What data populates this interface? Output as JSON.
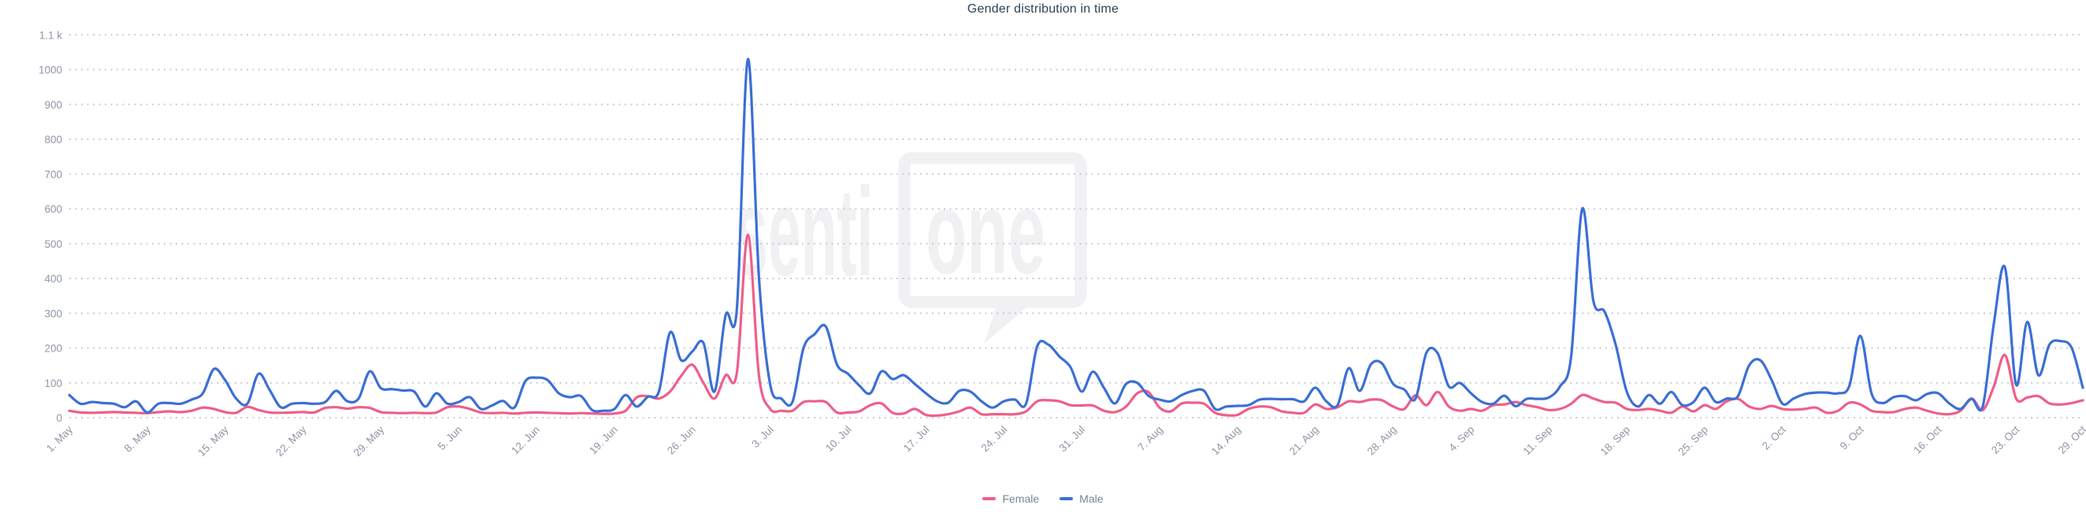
{
  "title": "Gender distribution in time",
  "watermark": {
    "left_text": "senti",
    "boxed_text": "one"
  },
  "colors": {
    "female": "#ee5f8a",
    "male": "#3c6fd6",
    "title": "#2f4356",
    "axis_label": "#8f96a6",
    "legend_text": "#7c8496",
    "gridline": "#cbccd2",
    "watermark": "#f1f1f4"
  },
  "legend": {
    "items": [
      "Female",
      "Male"
    ],
    "position": "bottom-center"
  },
  "chart_data": {
    "type": "line",
    "title": "Gender distribution in time",
    "xlabel": "",
    "ylabel": "",
    "ylim": [
      0,
      1100
    ],
    "grid": "horizontal-dotted",
    "legend_position": "bottom",
    "y_ticks": [
      0,
      100,
      200,
      300,
      400,
      500,
      600,
      700,
      800,
      900,
      1000,
      1100
    ],
    "y_tick_labels": [
      "0",
      "100",
      "200",
      "300",
      "400",
      "500",
      "600",
      "700",
      "800",
      "900",
      "1000",
      "1.1 k"
    ],
    "x_tick_labels": [
      "1. May",
      "8. May",
      "15. May",
      "22. May",
      "29. May",
      "5. Jun",
      "12. Jun",
      "19. Jun",
      "26. Jun",
      "3. Jul",
      "10. Jul",
      "17. Jul",
      "24. Jul",
      "31. Jul",
      "7. Aug",
      "14. Aug",
      "21. Aug",
      "28. Aug",
      "4. Sep",
      "11. Sep",
      "18. Sep",
      "25. Sep",
      "2. Oct",
      "9. Oct",
      "16. Oct",
      "23. Oct",
      "29. Oct"
    ],
    "x_tick_days": [
      0,
      7,
      14,
      21,
      28,
      35,
      42,
      49,
      56,
      63,
      70,
      77,
      84,
      91,
      98,
      105,
      112,
      119,
      126,
      133,
      140,
      147,
      154,
      161,
      168,
      175,
      181
    ],
    "x_range_days": 182,
    "x_start_date": "1. May",
    "x_end_date": "29. Oct",
    "series": [
      {
        "name": "Female",
        "color": "#ee5f8a",
        "values": [
          20,
          15,
          14,
          15,
          16,
          15,
          14,
          13,
          16,
          18,
          16,
          20,
          29,
          25,
          16,
          14,
          31,
          22,
          15,
          14,
          15,
          16,
          15,
          28,
          30,
          26,
          30,
          28,
          16,
          14,
          13,
          14,
          13,
          15,
          30,
          32,
          25,
          15,
          13,
          14,
          12,
          14,
          15,
          14,
          13,
          12,
          13,
          12,
          11,
          12,
          20,
          58,
          62,
          55,
          75,
          120,
          152,
          100,
          55,
          122,
          128,
          525,
          120,
          25,
          20,
          20,
          45,
          47,
          45,
          15,
          15,
          18,
          36,
          41,
          14,
          12,
          25,
          8,
          6,
          10,
          18,
          29,
          10,
          10,
          10,
          10,
          18,
          47,
          50,
          47,
          36,
          35,
          35,
          20,
          16,
          32,
          70,
          74,
          29,
          18,
          41,
          43,
          40,
          14,
          7,
          8,
          25,
          32,
          30,
          18,
          14,
          14,
          38,
          25,
          30,
          47,
          45,
          52,
          50,
          32,
          25,
          64,
          36,
          74,
          32,
          20,
          25,
          20,
          36,
          38,
          45,
          36,
          30,
          22,
          25,
          40,
          65,
          55,
          45,
          43,
          25,
          22,
          25,
          20,
          14,
          32,
          18,
          36,
          25,
          47,
          54,
          32,
          25,
          34,
          25,
          23,
          25,
          29,
          14,
          20,
          43,
          38,
          20,
          16,
          16,
          25,
          29,
          20,
          12,
          10,
          20,
          55,
          22,
          90,
          180,
          55,
          58,
          62,
          41,
          38,
          42,
          50
        ]
      },
      {
        "name": "Male",
        "color": "#3c6fd6",
        "values": [
          65,
          40,
          45,
          42,
          40,
          30,
          47,
          15,
          40,
          42,
          40,
          52,
          70,
          140,
          108,
          55,
          40,
          126,
          80,
          30,
          40,
          42,
          40,
          45,
          77,
          47,
          55,
          133,
          85,
          82,
          78,
          75,
          32,
          70,
          40,
          45,
          59,
          25,
          35,
          48,
          29,
          105,
          115,
          108,
          70,
          59,
          62,
          22,
          20,
          25,
          65,
          32,
          60,
          75,
          245,
          165,
          190,
          215,
          75,
          295,
          310,
          1030,
          400,
          95,
          55,
          45,
          200,
          240,
          262,
          153,
          126,
          93,
          70,
          133,
          111,
          122,
          97,
          70,
          47,
          43,
          77,
          75,
          47,
          29,
          47,
          52,
          40,
          205,
          210,
          176,
          145,
          75,
          132,
          86,
          41,
          97,
          100,
          63,
          52,
          47,
          65,
          77,
          77,
          25,
          32,
          34,
          36,
          52,
          54,
          53,
          53,
          47,
          86,
          47,
          36,
          142,
          77,
          153,
          156,
          97,
          81,
          54,
          187,
          185,
          90,
          100,
          70,
          45,
          40,
          63,
          33,
          54,
          54,
          58,
          90,
          175,
          600,
          335,
          305,
          210,
          75,
          32,
          65,
          40,
          74,
          36,
          45,
          86,
          45,
          55,
          62,
          150,
          165,
          110,
          40,
          55,
          68,
          72,
          72,
          70,
          90,
          235,
          70,
          42,
          59,
          62,
          50,
          68,
          70,
          41,
          25,
          54,
          32,
          270,
          432,
          95,
          275,
          122,
          210,
          220,
          200,
          86
        ]
      }
    ]
  }
}
